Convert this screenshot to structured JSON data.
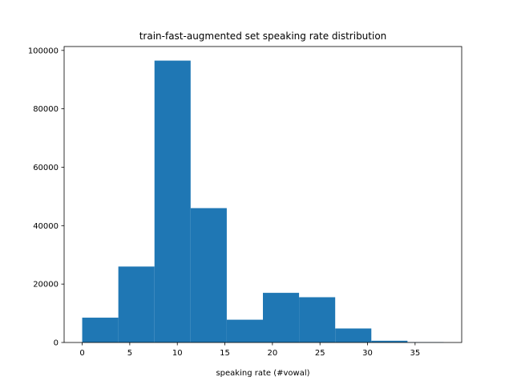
{
  "chart_data": {
    "type": "bar",
    "title": "train-fast-augmented set speaking rate distribution",
    "xlabel": "speaking rate (#vowal)",
    "ylabel": "",
    "bin_edges": [
      0,
      3.8,
      7.6,
      11.4,
      15.2,
      19.0,
      22.8,
      26.6,
      30.4,
      34.2,
      38.0
    ],
    "values": [
      8500,
      26000,
      96500,
      46000,
      7800,
      17000,
      15500,
      4800,
      600,
      100
    ],
    "xlim": [
      -1.9,
      39.9
    ],
    "ylim": [
      0,
      101325
    ],
    "xticks": [
      0,
      5,
      10,
      15,
      20,
      25,
      30,
      35
    ],
    "xtick_labels": [
      "0",
      "5",
      "10",
      "15",
      "20",
      "25",
      "30",
      "35"
    ],
    "yticks": [
      0,
      20000,
      40000,
      60000,
      80000,
      100000
    ],
    "ytick_labels": [
      "0",
      "20000",
      "40000",
      "60000",
      "80000",
      "100000"
    ],
    "color": "#1f77b4",
    "grid": false,
    "legend": "none"
  }
}
